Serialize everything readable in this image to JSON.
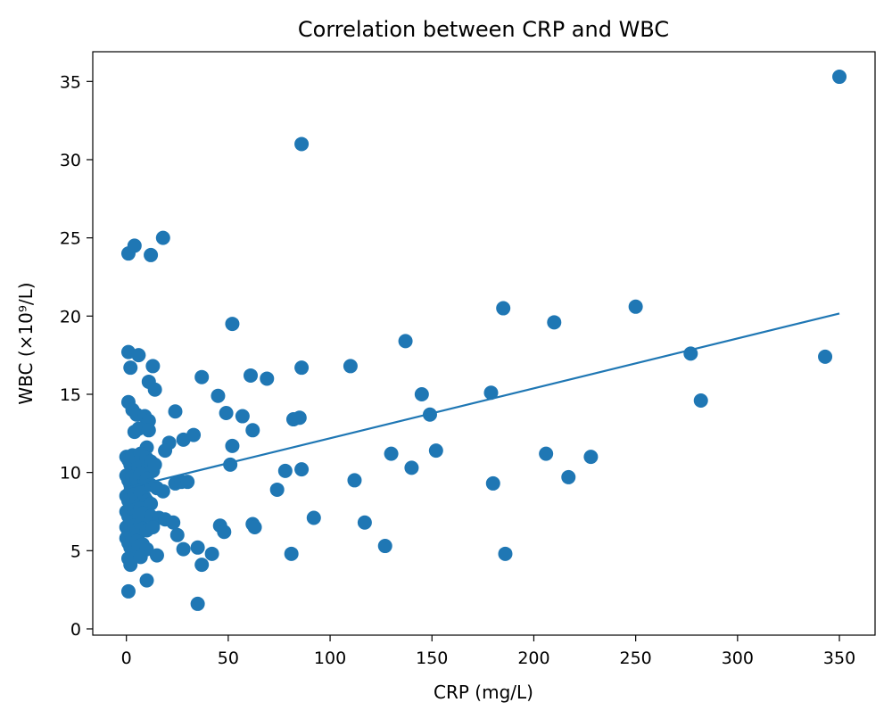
{
  "chart_data": {
    "type": "scatter",
    "title": "Correlation between CRP and WBC",
    "xlabel": "CRP (mg/L)",
    "ylabel": "WBC (×10⁹/L)",
    "xlim": [
      -16.5,
      367.5
    ],
    "ylim": [
      -0.4,
      36.9
    ],
    "xticks": [
      0,
      50,
      100,
      150,
      200,
      250,
      300,
      350
    ],
    "yticks": [
      0,
      5,
      10,
      15,
      20,
      25,
      30,
      35
    ],
    "grid": false,
    "point_color": "#1f77b4",
    "line_color": "#1f77b4",
    "series": [
      {
        "name": "data",
        "points": [
          [
            350,
            35.3
          ],
          [
            86,
            31.0
          ],
          [
            1,
            24.0
          ],
          [
            4,
            24.5
          ],
          [
            12,
            23.9
          ],
          [
            18,
            25.0
          ],
          [
            52,
            19.5
          ],
          [
            185,
            20.5
          ],
          [
            210,
            19.6
          ],
          [
            250,
            20.6
          ],
          [
            277,
            17.6
          ],
          [
            343,
            17.4
          ],
          [
            282,
            14.6
          ],
          [
            1,
            17.7
          ],
          [
            6,
            17.5
          ],
          [
            2,
            16.7
          ],
          [
            13,
            16.8
          ],
          [
            11,
            15.8
          ],
          [
            14,
            15.3
          ],
          [
            37,
            16.1
          ],
          [
            61,
            16.2
          ],
          [
            69,
            16.0
          ],
          [
            86,
            16.7
          ],
          [
            110,
            16.8
          ],
          [
            137,
            18.4
          ],
          [
            45,
            14.9
          ],
          [
            49,
            13.8
          ],
          [
            57,
            13.6
          ],
          [
            62,
            12.7
          ],
          [
            82,
            13.4
          ],
          [
            85,
            13.5
          ],
          [
            145,
            15.0
          ],
          [
            149,
            13.7
          ],
          [
            179,
            15.1
          ],
          [
            1,
            14.5
          ],
          [
            3,
            14.0
          ],
          [
            5,
            13.7
          ],
          [
            9,
            13.6
          ],
          [
            11,
            13.3
          ],
          [
            24,
            13.9
          ],
          [
            4,
            12.6
          ],
          [
            6,
            12.8
          ],
          [
            11,
            12.7
          ],
          [
            28,
            12.1
          ],
          [
            33,
            12.4
          ],
          [
            21,
            11.9
          ],
          [
            10,
            11.6
          ],
          [
            19,
            11.4
          ],
          [
            52,
            11.7
          ],
          [
            0,
            11.0
          ],
          [
            1,
            10.8
          ],
          [
            2,
            10.5
          ],
          [
            3,
            11.1
          ],
          [
            4,
            10.0
          ],
          [
            5,
            10.9
          ],
          [
            6,
            10.3
          ],
          [
            7,
            11.2
          ],
          [
            8,
            10.6
          ],
          [
            9,
            10.2
          ],
          [
            10,
            10.9
          ],
          [
            11,
            10.4
          ],
          [
            12,
            10.7
          ],
          [
            13,
            10.1
          ],
          [
            14,
            10.5
          ],
          [
            0,
            9.8
          ],
          [
            1,
            9.5
          ],
          [
            2,
            9.2
          ],
          [
            3,
            9.7
          ],
          [
            4,
            9.0
          ],
          [
            5,
            9.6
          ],
          [
            6,
            9.3
          ],
          [
            7,
            9.9
          ],
          [
            8,
            9.1
          ],
          [
            9,
            9.4
          ],
          [
            10,
            9.6
          ],
          [
            12,
            9.2
          ],
          [
            15,
            9.0
          ],
          [
            18,
            8.8
          ],
          [
            0,
            8.5
          ],
          [
            1,
            8.2
          ],
          [
            2,
            8.8
          ],
          [
            3,
            8.0
          ],
          [
            4,
            8.6
          ],
          [
            5,
            8.3
          ],
          [
            6,
            7.9
          ],
          [
            7,
            8.7
          ],
          [
            8,
            8.1
          ],
          [
            9,
            8.4
          ],
          [
            10,
            8.2
          ],
          [
            12,
            8.0
          ],
          [
            0,
            7.5
          ],
          [
            1,
            7.2
          ],
          [
            2,
            7.8
          ],
          [
            3,
            7.0
          ],
          [
            4,
            7.6
          ],
          [
            5,
            7.3
          ],
          [
            6,
            7.1
          ],
          [
            7,
            7.7
          ],
          [
            8,
            7.4
          ],
          [
            12,
            7.2
          ],
          [
            16,
            7.1
          ],
          [
            19,
            7.0
          ],
          [
            0,
            6.5
          ],
          [
            1,
            6.2
          ],
          [
            2,
            6.8
          ],
          [
            3,
            6.0
          ],
          [
            4,
            6.6
          ],
          [
            5,
            6.3
          ],
          [
            6,
            6.1
          ],
          [
            7,
            6.7
          ],
          [
            8,
            6.4
          ],
          [
            10,
            6.3
          ],
          [
            13,
            6.5
          ],
          [
            0,
            5.8
          ],
          [
            1,
            5.5
          ],
          [
            2,
            5.2
          ],
          [
            3,
            5.7
          ],
          [
            4,
            5.0
          ],
          [
            5,
            5.6
          ],
          [
            6,
            5.3
          ],
          [
            8,
            5.4
          ],
          [
            10,
            5.1
          ],
          [
            1,
            4.5
          ],
          [
            2,
            4.1
          ],
          [
            7,
            4.6
          ],
          [
            15,
            4.7
          ],
          [
            1,
            2.4
          ],
          [
            10,
            3.1
          ],
          [
            24,
            9.3
          ],
          [
            27,
            9.4
          ],
          [
            30,
            9.4
          ],
          [
            23,
            6.8
          ],
          [
            25,
            6.0
          ],
          [
            28,
            5.1
          ],
          [
            35,
            5.2
          ],
          [
            37,
            4.1
          ],
          [
            42,
            4.8
          ],
          [
            46,
            6.6
          ],
          [
            48,
            6.2
          ],
          [
            35,
            1.6
          ],
          [
            51,
            10.5
          ],
          [
            62,
            6.7
          ],
          [
            63,
            6.5
          ],
          [
            74,
            8.9
          ],
          [
            78,
            10.1
          ],
          [
            81,
            4.8
          ],
          [
            86,
            10.2
          ],
          [
            92,
            7.1
          ],
          [
            112,
            9.5
          ],
          [
            117,
            6.8
          ],
          [
            127,
            5.3
          ],
          [
            130,
            11.2
          ],
          [
            140,
            10.3
          ],
          [
            152,
            11.4
          ],
          [
            180,
            9.3
          ],
          [
            186,
            4.8
          ],
          [
            206,
            11.2
          ],
          [
            217,
            9.7
          ],
          [
            228,
            11.0
          ]
        ]
      }
    ],
    "trendline": {
      "slope": 0.0319,
      "intercept": 9.0,
      "x_range": [
        0,
        350
      ]
    }
  }
}
